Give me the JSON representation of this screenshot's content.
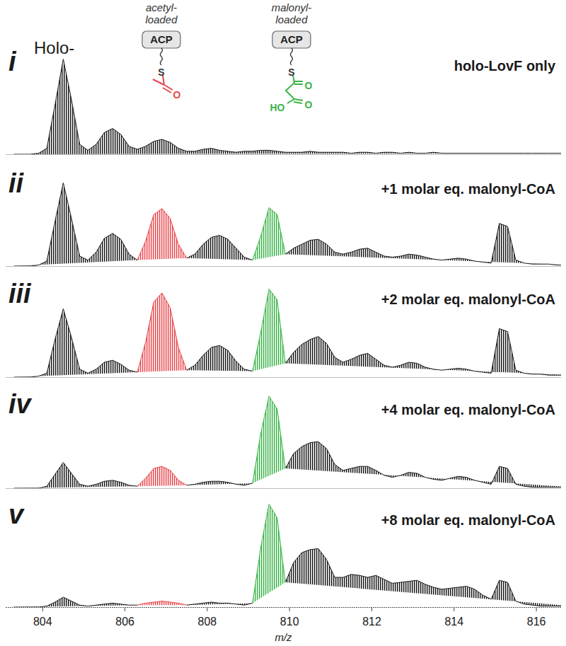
{
  "chart_data": [
    {
      "type": "line",
      "panel_label": "i",
      "title": "holo-LovF only",
      "annotations": [
        {
          "text": "Holo-"
        }
      ],
      "icons": [
        {
          "label": [
            "acetyl-",
            "loaded"
          ],
          "box": "ACP",
          "atoms": [
            "S",
            "O"
          ],
          "color": "#e8474c"
        },
        {
          "label": [
            "malonyl-",
            "loaded"
          ],
          "box": "ACP",
          "atoms": [
            "S",
            "O",
            "HO",
            "O"
          ],
          "color": "#3cb44a"
        }
      ],
      "xlim": [
        803.1,
        816.6
      ],
      "ylim": [
        0,
        110
      ],
      "tick_labels": false,
      "x": [
        803.3,
        803.5,
        803.7,
        803.9,
        804.1,
        804.3,
        804.5,
        804.7,
        804.9,
        805.1,
        805.3,
        805.5,
        805.7,
        805.9,
        806.1,
        806.3,
        806.5,
        806.7,
        806.9,
        807.1,
        807.3,
        807.5,
        807.7,
        807.9,
        808.1,
        808.3,
        808.5,
        808.7,
        808.9,
        809.1,
        809.3,
        809.5,
        809.7,
        809.9,
        810.1,
        810.3,
        810.5,
        810.7,
        810.9,
        811.1,
        811.3,
        811.5,
        811.7,
        811.9,
        812.1,
        812.3,
        812.5,
        812.7,
        812.9,
        813.1,
        813.3,
        813.5,
        813.7,
        813.9,
        814.1,
        814.3,
        814.5,
        814.7,
        814.9,
        815.1,
        815.3,
        815.5,
        815.7,
        815.9,
        816.1,
        816.3,
        816.5,
        816.7,
        816.9
      ],
      "series": [
        {
          "color": "#1a1a1a",
          "values": [
            0,
            0,
            0,
            1,
            6,
            50,
            96,
            55,
            10,
            4,
            10,
            22,
            26,
            20,
            8,
            5,
            8,
            13,
            15,
            12,
            6,
            3,
            3,
            5,
            6,
            4,
            3,
            2,
            3,
            3,
            4,
            4,
            3,
            2,
            2,
            2,
            3,
            2,
            2,
            2,
            2,
            1,
            2,
            2,
            1,
            2,
            2,
            1,
            2,
            1,
            1,
            2,
            1,
            1,
            1,
            1,
            1,
            1,
            1,
            1,
            1,
            1,
            1,
            1,
            1,
            1,
            1,
            1,
            1
          ]
        }
      ]
    },
    {
      "type": "line",
      "panel_label": "ii",
      "title": "+1 molar eq. malonyl-CoA",
      "xlim": [
        803.1,
        816.6
      ],
      "ylim": [
        0,
        110
      ],
      "tick_labels": false,
      "x": [
        803.3,
        803.5,
        803.7,
        803.9,
        804.1,
        804.3,
        804.5,
        804.7,
        804.9,
        805.1,
        805.3,
        805.5,
        805.7,
        805.9,
        806.1,
        806.3,
        806.5,
        806.7,
        806.9,
        807.1,
        807.3,
        807.5,
        807.7,
        807.9,
        808.1,
        808.3,
        808.5,
        808.7,
        808.9,
        809.1,
        809.3,
        809.5,
        809.7,
        809.9,
        810.1,
        810.3,
        810.5,
        810.7,
        810.9,
        811.1,
        811.3,
        811.5,
        811.7,
        811.9,
        812.1,
        812.3,
        812.5,
        812.7,
        812.9,
        813.1,
        813.3,
        813.5,
        813.7,
        813.9,
        814.1,
        814.3,
        814.5,
        814.7,
        814.9,
        815.1,
        815.3,
        815.5,
        815.7,
        815.9,
        816.1,
        816.3,
        816.5,
        816.7,
        816.9
      ],
      "series": [
        {
          "color": "#1a1a1a",
          "values": [
            0,
            0,
            0,
            1,
            5,
            45,
            84,
            48,
            10,
            6,
            14,
            28,
            33,
            27,
            12,
            6,
            null,
            null,
            null,
            null,
            null,
            8,
            12,
            22,
            29,
            31,
            27,
            18,
            9,
            6,
            null,
            null,
            null,
            12,
            18,
            22,
            26,
            27,
            22,
            14,
            12,
            14,
            17,
            18,
            14,
            10,
            9,
            10,
            12,
            11,
            9,
            7,
            6,
            7,
            8,
            7,
            5,
            4,
            3,
            43,
            40,
            6,
            3,
            2,
            2,
            2,
            1,
            1,
            1
          ]
        },
        {
          "color": "#e8474c",
          "x": [
            806.3,
            806.5,
            806.7,
            806.9,
            807.1,
            807.3,
            807.5
          ],
          "values": [
            6,
            25,
            52,
            58,
            48,
            22,
            8
          ]
        },
        {
          "color": "#3cb44a",
          "x": [
            809.1,
            809.3,
            809.5,
            809.7,
            809.9
          ],
          "values": [
            6,
            30,
            59,
            52,
            12
          ]
        }
      ]
    },
    {
      "type": "line",
      "panel_label": "iii",
      "title": "+2 molar eq. malonyl-CoA",
      "xlim": [
        803.1,
        816.6
      ],
      "ylim": [
        0,
        110
      ],
      "tick_labels": false,
      "x": [
        803.3,
        803.5,
        803.7,
        803.9,
        804.1,
        804.3,
        804.5,
        804.7,
        804.9,
        805.1,
        805.3,
        805.5,
        805.7,
        805.9,
        806.1,
        806.3,
        806.5,
        806.7,
        806.9,
        807.1,
        807.3,
        807.5,
        807.7,
        807.9,
        808.1,
        808.3,
        808.5,
        808.7,
        808.9,
        809.1,
        809.3,
        809.5,
        809.7,
        809.9,
        810.1,
        810.3,
        810.5,
        810.7,
        810.9,
        811.1,
        811.3,
        811.5,
        811.7,
        811.9,
        812.1,
        812.3,
        812.5,
        812.7,
        812.9,
        813.1,
        813.3,
        813.5,
        813.7,
        813.9,
        814.1,
        814.3,
        814.5,
        814.7,
        814.9,
        815.1,
        815.3,
        815.5,
        815.7,
        815.9,
        816.1,
        816.3,
        816.5,
        816.7,
        816.9
      ],
      "series": [
        {
          "color": "#1a1a1a",
          "values": [
            0,
            0,
            0,
            1,
            4,
            38,
            69,
            40,
            8,
            4,
            8,
            15,
            17,
            13,
            7,
            5,
            null,
            null,
            null,
            null,
            null,
            7,
            12,
            22,
            30,
            32,
            27,
            16,
            8,
            6,
            null,
            null,
            null,
            14,
            25,
            33,
            38,
            41,
            34,
            20,
            15,
            18,
            22,
            24,
            18,
            12,
            10,
            12,
            15,
            14,
            10,
            8,
            7,
            8,
            9,
            8,
            6,
            5,
            4,
            49,
            46,
            7,
            4,
            3,
            3,
            2,
            2,
            2,
            2
          ]
        },
        {
          "color": "#e8474c",
          "x": [
            806.3,
            806.5,
            806.7,
            806.9,
            807.1,
            807.3,
            807.5
          ],
          "values": [
            5,
            35,
            76,
            85,
            70,
            30,
            7
          ]
        },
        {
          "color": "#3cb44a",
          "x": [
            809.1,
            809.3,
            809.5,
            809.7,
            809.9
          ],
          "values": [
            6,
            45,
            89,
            78,
            14
          ]
        }
      ]
    },
    {
      "type": "line",
      "panel_label": "iv",
      "title": "+4 molar eq. malonyl-CoA",
      "xlim": [
        803.1,
        816.6
      ],
      "ylim": [
        0,
        110
      ],
      "tick_labels": false,
      "x": [
        803.3,
        803.5,
        803.7,
        803.9,
        804.1,
        804.3,
        804.5,
        804.7,
        804.9,
        805.1,
        805.3,
        805.5,
        805.7,
        805.9,
        806.1,
        806.3,
        806.5,
        806.7,
        806.9,
        807.1,
        807.3,
        807.5,
        807.7,
        807.9,
        808.1,
        808.3,
        808.5,
        808.7,
        808.9,
        809.1,
        809.3,
        809.5,
        809.7,
        809.9,
        810.1,
        810.3,
        810.5,
        810.7,
        810.9,
        811.1,
        811.3,
        811.5,
        811.7,
        811.9,
        812.1,
        812.3,
        812.5,
        812.7,
        812.9,
        813.1,
        813.3,
        813.5,
        813.7,
        813.9,
        814.1,
        814.3,
        814.5,
        814.7,
        814.9,
        815.1,
        815.3,
        815.5,
        815.7,
        815.9,
        816.1,
        816.3,
        816.5,
        816.7,
        816.9
      ],
      "series": [
        {
          "color": "#1a1a1a",
          "values": [
            0,
            0,
            0,
            0,
            2,
            14,
            26,
            15,
            4,
            2,
            4,
            7,
            8,
            6,
            3,
            2,
            null,
            null,
            null,
            null,
            null,
            3,
            4,
            6,
            7,
            7,
            6,
            4,
            3,
            5,
            null,
            null,
            null,
            20,
            35,
            42,
            46,
            47,
            40,
            24,
            18,
            20,
            22,
            22,
            18,
            13,
            11,
            13,
            16,
            15,
            11,
            9,
            8,
            10,
            12,
            11,
            8,
            6,
            4,
            22,
            20,
            4,
            2,
            1,
            1,
            1,
            1,
            1,
            1
          ]
        },
        {
          "color": "#e8474c",
          "x": [
            806.3,
            806.5,
            806.7,
            806.9,
            807.1,
            807.3,
            807.5
          ],
          "values": [
            2,
            10,
            20,
            22,
            18,
            8,
            3
          ]
        },
        {
          "color": "#3cb44a",
          "x": [
            809.1,
            809.3,
            809.5,
            809.7,
            809.9
          ],
          "values": [
            5,
            55,
            93,
            80,
            20
          ]
        }
      ]
    },
    {
      "type": "line",
      "panel_label": "v",
      "title": "+8 molar eq. malonyl-CoA",
      "xlim": [
        803.1,
        816.6
      ],
      "ylim": [
        0,
        110
      ],
      "tick_labels": "x",
      "x_label": "m/z",
      "xticks": [
        804,
        806,
        808,
        810,
        812,
        814,
        816
      ],
      "x": [
        803.3,
        803.5,
        803.7,
        803.9,
        804.1,
        804.3,
        804.5,
        804.7,
        804.9,
        805.1,
        805.3,
        805.5,
        805.7,
        805.9,
        806.1,
        806.3,
        806.5,
        806.7,
        806.9,
        807.1,
        807.3,
        807.5,
        807.7,
        807.9,
        808.1,
        808.3,
        808.5,
        808.7,
        808.9,
        809.1,
        809.3,
        809.5,
        809.7,
        809.9,
        810.1,
        810.3,
        810.5,
        810.7,
        810.9,
        811.1,
        811.3,
        811.5,
        811.7,
        811.9,
        812.1,
        812.3,
        812.5,
        812.7,
        812.9,
        813.1,
        813.3,
        813.5,
        813.7,
        813.9,
        814.1,
        814.3,
        814.5,
        814.7,
        814.9,
        815.1,
        815.3,
        815.5,
        815.7,
        815.9,
        816.1,
        816.3,
        816.5,
        816.7,
        816.9
      ],
      "series": [
        {
          "color": "#1a1a1a",
          "values": [
            0,
            0,
            0,
            0,
            1,
            5,
            10,
            6,
            2,
            1,
            2,
            3,
            4,
            3,
            2,
            2,
            null,
            null,
            null,
            null,
            null,
            2,
            3,
            4,
            5,
            4,
            4,
            3,
            2,
            4,
            null,
            null,
            null,
            25,
            45,
            55,
            58,
            59,
            48,
            30,
            30,
            33,
            32,
            30,
            32,
            28,
            24,
            25,
            26,
            27,
            23,
            20,
            18,
            19,
            20,
            21,
            18,
            12,
            8,
            27,
            25,
            6,
            3,
            2,
            1,
            1,
            1,
            1,
            1
          ]
        },
        {
          "color": "#e8474c",
          "x": [
            806.3,
            806.5,
            806.7,
            806.9,
            807.1,
            807.3,
            807.5
          ],
          "values": [
            2,
            4,
            5,
            6,
            5,
            4,
            2
          ]
        },
        {
          "color": "#3cb44a",
          "x": [
            809.1,
            809.3,
            809.5,
            809.7,
            809.9
          ],
          "values": [
            4,
            60,
            104,
            90,
            25
          ]
        }
      ]
    }
  ]
}
